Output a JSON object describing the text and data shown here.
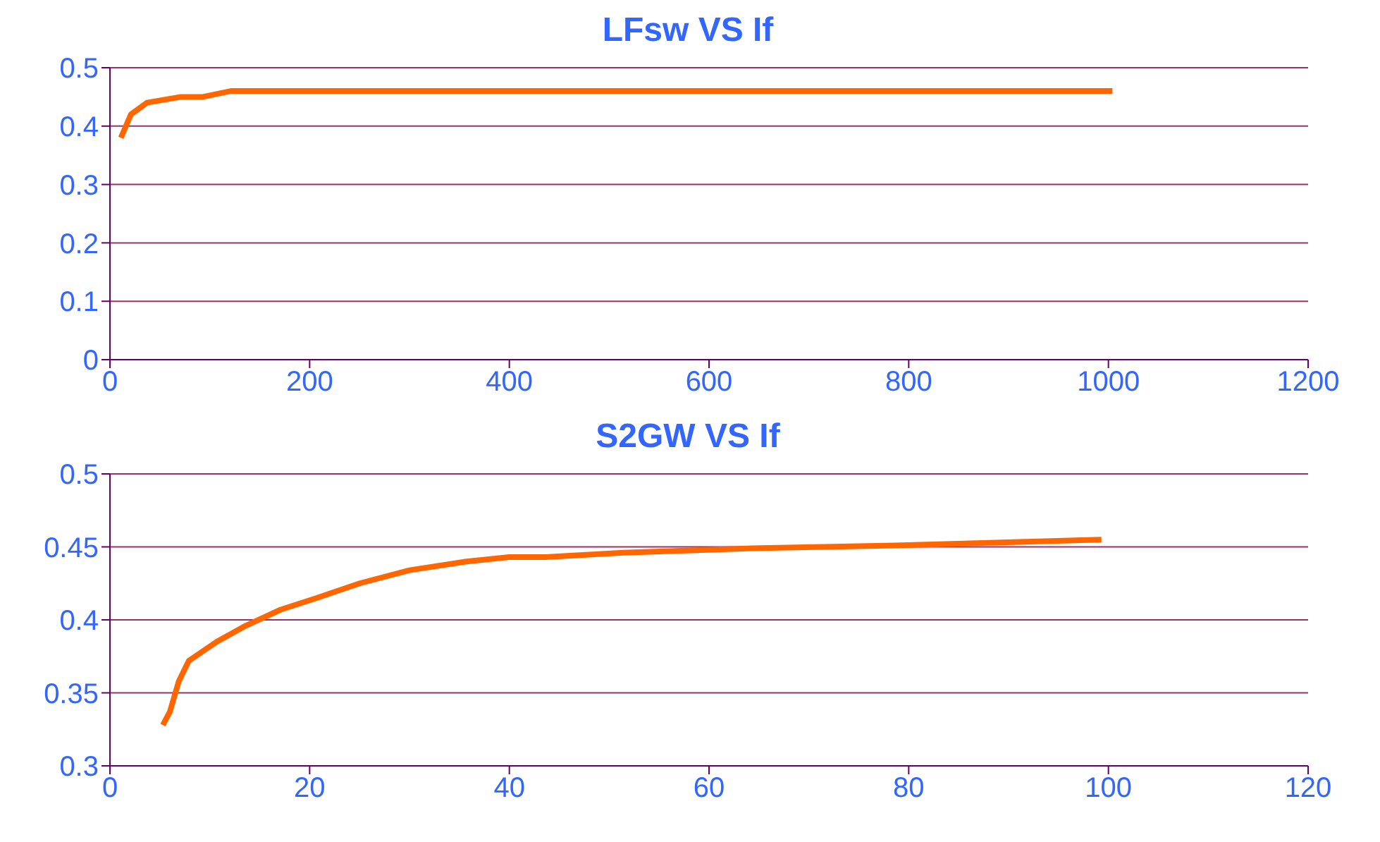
{
  "chart_data": [
    {
      "type": "line",
      "title": "LFsw VS If",
      "x": [
        11,
        21,
        37,
        71,
        93,
        121,
        150,
        179,
        300,
        357,
        1004
      ],
      "series": [
        {
          "color": "#ff6600",
          "values": [
            0.38,
            0.42,
            0.44,
            0.45,
            0.45,
            0.46,
            0.46,
            0.46,
            0.46,
            0.46,
            0.46
          ]
        }
      ],
      "xlim": [
        0,
        1200
      ],
      "xticks": [
        0,
        200,
        400,
        600,
        800,
        1000,
        1200
      ],
      "ylim": [
        0,
        0.5
      ],
      "yticks": [
        0,
        0.1,
        0.2,
        0.3,
        0.4,
        0.5
      ],
      "grid": "y",
      "legend": false,
      "marker": "none",
      "line_style": "solid"
    },
    {
      "type": "line",
      "title": "S2GW VS If",
      "x": [
        5.3,
        6,
        6.9,
        7.9,
        10.7,
        13.6,
        17.1,
        20.7,
        25,
        30,
        35.7,
        40,
        43.6,
        51.4,
        64.3,
        78.6,
        99.3
      ],
      "series": [
        {
          "color": "#ff6600",
          "values": [
            0.328,
            0.337,
            0.358,
            0.372,
            0.385,
            0.396,
            0.407,
            0.415,
            0.425,
            0.434,
            0.44,
            0.443,
            0.443,
            0.446,
            0.449,
            0.451,
            0.455
          ]
        }
      ],
      "xlim": [
        0,
        120
      ],
      "xticks": [
        0,
        20,
        40,
        60,
        80,
        100,
        120
      ],
      "ylim": [
        0.3,
        0.5
      ],
      "yticks": [
        0.3,
        0.35,
        0.4,
        0.45,
        0.5
      ],
      "grid": "y",
      "legend": false,
      "marker": "none",
      "line_style": "solid"
    }
  ]
}
